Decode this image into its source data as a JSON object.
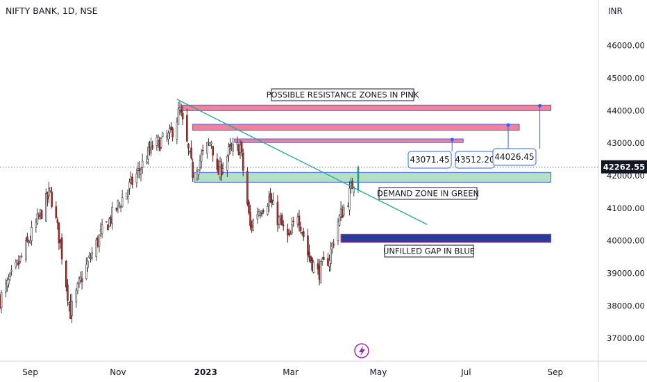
{
  "header": {
    "title": "NIFTY BANK, 1D, NSE"
  },
  "chart_data": {
    "type": "candlestick",
    "title": "NIFTY BANK, 1D, NSE",
    "currency_label": "INR",
    "last_price": 42262.55,
    "last_price_label": "42262.55",
    "ylim": [
      36300,
      47400
    ],
    "y_ticks": [
      "37000.00",
      "38000.00",
      "39000.00",
      "40000.00",
      "41000.00",
      "42000.00",
      "43000.00",
      "44000.00",
      "45000.00",
      "46000.00"
    ],
    "y_tick_values": [
      37000,
      38000,
      39000,
      40000,
      41000,
      42000,
      43000,
      44000,
      45000,
      46000
    ],
    "x_range": [
      "2022-08-11",
      "2023-10-01"
    ],
    "x_ticks": [
      {
        "label": "Sep",
        "date": "2022-09-01"
      },
      {
        "label": "Nov",
        "date": "2022-11-01"
      },
      {
        "label": "2023",
        "date": "2023-01-01"
      },
      {
        "label": "Mar",
        "date": "2023-03-01"
      },
      {
        "label": "May",
        "date": "2023-05-01"
      },
      {
        "label": "Jul",
        "date": "2023-07-01"
      },
      {
        "label": "Sep",
        "date": "2023-09-01"
      }
    ],
    "anchors": [
      {
        "date": "2022-08-11",
        "close": 38200
      },
      {
        "date": "2022-08-24",
        "close": 39300
      },
      {
        "date": "2022-09-06",
        "close": 40600
      },
      {
        "date": "2022-09-15",
        "close": 41500
      },
      {
        "date": "2022-09-22",
        "close": 39900
      },
      {
        "date": "2022-09-29",
        "close": 37800
      },
      {
        "date": "2022-10-07",
        "close": 38900
      },
      {
        "date": "2022-10-19",
        "close": 40100
      },
      {
        "date": "2022-10-31",
        "close": 41000
      },
      {
        "date": "2022-11-15",
        "close": 42100
      },
      {
        "date": "2022-11-25",
        "close": 42900
      },
      {
        "date": "2022-12-07",
        "close": 43200
      },
      {
        "date": "2022-12-14",
        "close": 44000
      },
      {
        "date": "2022-12-23",
        "close": 42100
      },
      {
        "date": "2023-01-05",
        "close": 43100
      },
      {
        "date": "2023-01-09",
        "close": 42000
      },
      {
        "date": "2023-01-17",
        "close": 42700
      },
      {
        "date": "2023-01-25",
        "close": 42900
      },
      {
        "date": "2023-02-01",
        "close": 40400
      },
      {
        "date": "2023-02-06",
        "close": 40900
      },
      {
        "date": "2023-02-14",
        "close": 41300
      },
      {
        "date": "2023-02-20",
        "close": 40700
      },
      {
        "date": "2023-02-28",
        "close": 40000
      },
      {
        "date": "2023-03-06",
        "close": 40900
      },
      {
        "date": "2023-03-13",
        "close": 39600
      },
      {
        "date": "2023-03-20",
        "close": 39000
      },
      {
        "date": "2023-03-28",
        "close": 39500
      },
      {
        "date": "2023-04-03",
        "close": 40600
      },
      {
        "date": "2023-04-10",
        "close": 41300
      },
      {
        "date": "2023-04-17",
        "close": 42262.55
      }
    ],
    "resistance_zones": [
      {
        "label": "44026.45",
        "top": 44170,
        "bottom": 44000,
        "start": "2022-12-15",
        "end": "2023-08-29"
      },
      {
        "label": "43512.20",
        "top": 43580,
        "bottom": 43400,
        "start": "2022-12-23",
        "end": "2023-08-07"
      },
      {
        "label": "43071.45",
        "top": 43130,
        "bottom": 43020,
        "start": "2023-01-21",
        "end": "2023-06-29"
      }
    ],
    "demand_zone": {
      "top": 42100,
      "bottom": 41800,
      "start": "2022-12-24",
      "end": "2023-08-29"
    },
    "gap_zone": {
      "top": 40200,
      "bottom": 39950,
      "start": "2023-04-05",
      "end": "2023-08-29"
    },
    "trendline": {
      "start_date": "2022-12-12",
      "start_price": 44350,
      "end_date": "2023-06-04",
      "end_price": 40500
    },
    "annotations": {
      "resistance": "POSSIBLE RESISTANCE ZONES IN PINK",
      "demand": "DEMAND  ZONE IN GREEN",
      "gap": "UNFILLED GAP IN BLUE"
    },
    "colors": {
      "up": "#f2f2f2",
      "up_last": "#26a69a",
      "down": "#b2302b",
      "pink": "#f0829a",
      "green": "#b4e1c3",
      "blue": "#293c9b",
      "trend": "#26a69a",
      "callout": "#2962ff",
      "axis_text": "#131722",
      "accent_purple": "#9c27b0"
    },
    "grid": false,
    "legend": "none"
  }
}
